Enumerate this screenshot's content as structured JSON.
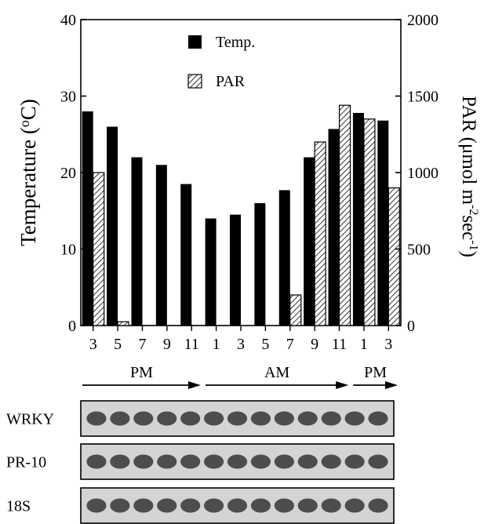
{
  "chart_data": {
    "type": "bar",
    "categories": [
      "3",
      "5",
      "7",
      "9",
      "11",
      "1",
      "3",
      "5",
      "7",
      "9",
      "11",
      "1",
      "3"
    ],
    "series": [
      {
        "name": "Temp.",
        "axis": "left",
        "values": [
          28,
          26,
          22,
          21,
          18.5,
          14,
          14.5,
          16,
          17.7,
          22,
          25.7,
          27.8,
          26.8
        ]
      },
      {
        "name": "PAR",
        "axis": "right",
        "values": [
          1000,
          25,
          0,
          0,
          0,
          0,
          0,
          0,
          200,
          1200,
          1440,
          1350,
          900
        ]
      }
    ],
    "ylabel_left": "Temperature (oC)",
    "ylabel_right": "PAR (μmol m-2sec-1)",
    "ylim_left": [
      0,
      40
    ],
    "ylim_right": [
      0,
      2000
    ],
    "yticks_left": [
      "0",
      "10",
      "20",
      "30",
      "40"
    ],
    "yticks_right": [
      "0",
      "500",
      "1000",
      "1500",
      "2000"
    ],
    "legend_placement": "top-center",
    "grid": false,
    "time_periods": [
      {
        "label": "PM",
        "from_index": 0,
        "to_index": 4
      },
      {
        "label": "AM",
        "from_index": 5,
        "to_index": 10
      },
      {
        "label": "PM",
        "from_index": 11,
        "to_index": 12
      }
    ]
  },
  "blot": {
    "rows": [
      "WRKY",
      "PR-10",
      "18S"
    ],
    "lanes": 13
  },
  "colors": {
    "temp_bar": "#000000",
    "par_hatch": "#000000",
    "band": "#3a3a3a",
    "blot_background": "#d4d4d4"
  }
}
